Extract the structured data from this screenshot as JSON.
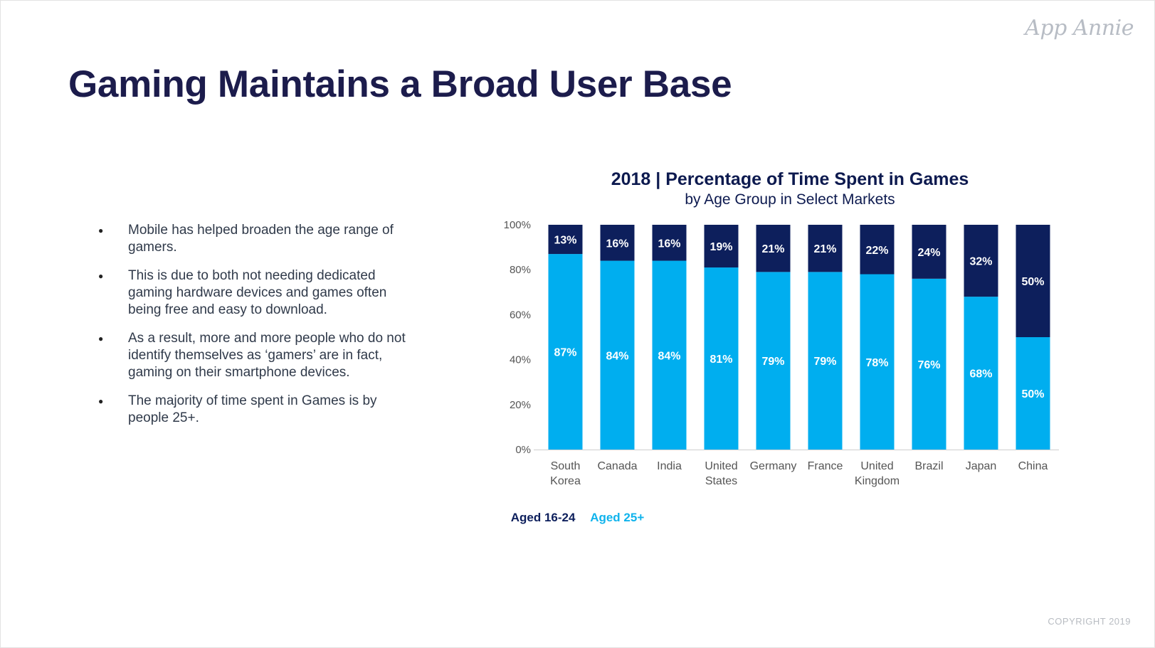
{
  "brand": "App Annie",
  "slide_title": "Gaming Maintains a Broad User Base",
  "bullets": [
    "Mobile has helped broaden the age range of gamers.",
    "This is due to both not needing dedicated gaming hardware devices and games often being free and easy to download.",
    "As a result, more and more people who do not identify themselves as ‘gamers’ are in fact, gaming on their smartphone devices.",
    "The majority of time spent in Games is by people 25+."
  ],
  "copyright": "COPYRIGHT 2019",
  "colors": {
    "aged_16_24": "#0d1f5c",
    "aged_25_plus": "#00aeef",
    "title": "#1c1c4c"
  },
  "chart_data": {
    "type": "bar",
    "stacked": true,
    "title": "2018 | Percentage of Time Spent in Games",
    "subtitle": "by Age Group in Select Markets",
    "categories": [
      "South Korea",
      "Canada",
      "India",
      "United States",
      "Germany",
      "France",
      "United Kingdom",
      "Brazil",
      "Japan",
      "China"
    ],
    "category_lines": [
      [
        "South",
        "Korea"
      ],
      [
        "Canada"
      ],
      [
        "India"
      ],
      [
        "United",
        "States"
      ],
      [
        "Germany"
      ],
      [
        "France"
      ],
      [
        "United",
        "Kingdom"
      ],
      [
        "Brazil"
      ],
      [
        "Japan"
      ],
      [
        "China"
      ]
    ],
    "series": [
      {
        "name": "Aged 25+",
        "values": [
          87,
          84,
          84,
          81,
          79,
          79,
          78,
          76,
          68,
          50
        ]
      },
      {
        "name": "Aged 16-24",
        "values": [
          13,
          16,
          16,
          19,
          21,
          21,
          22,
          24,
          32,
          50
        ]
      }
    ],
    "y_ticks": [
      "0%",
      "20%",
      "40%",
      "60%",
      "80%",
      "100%"
    ],
    "ylim": [
      0,
      100
    ],
    "legend_position": "bottom",
    "grid": false
  }
}
